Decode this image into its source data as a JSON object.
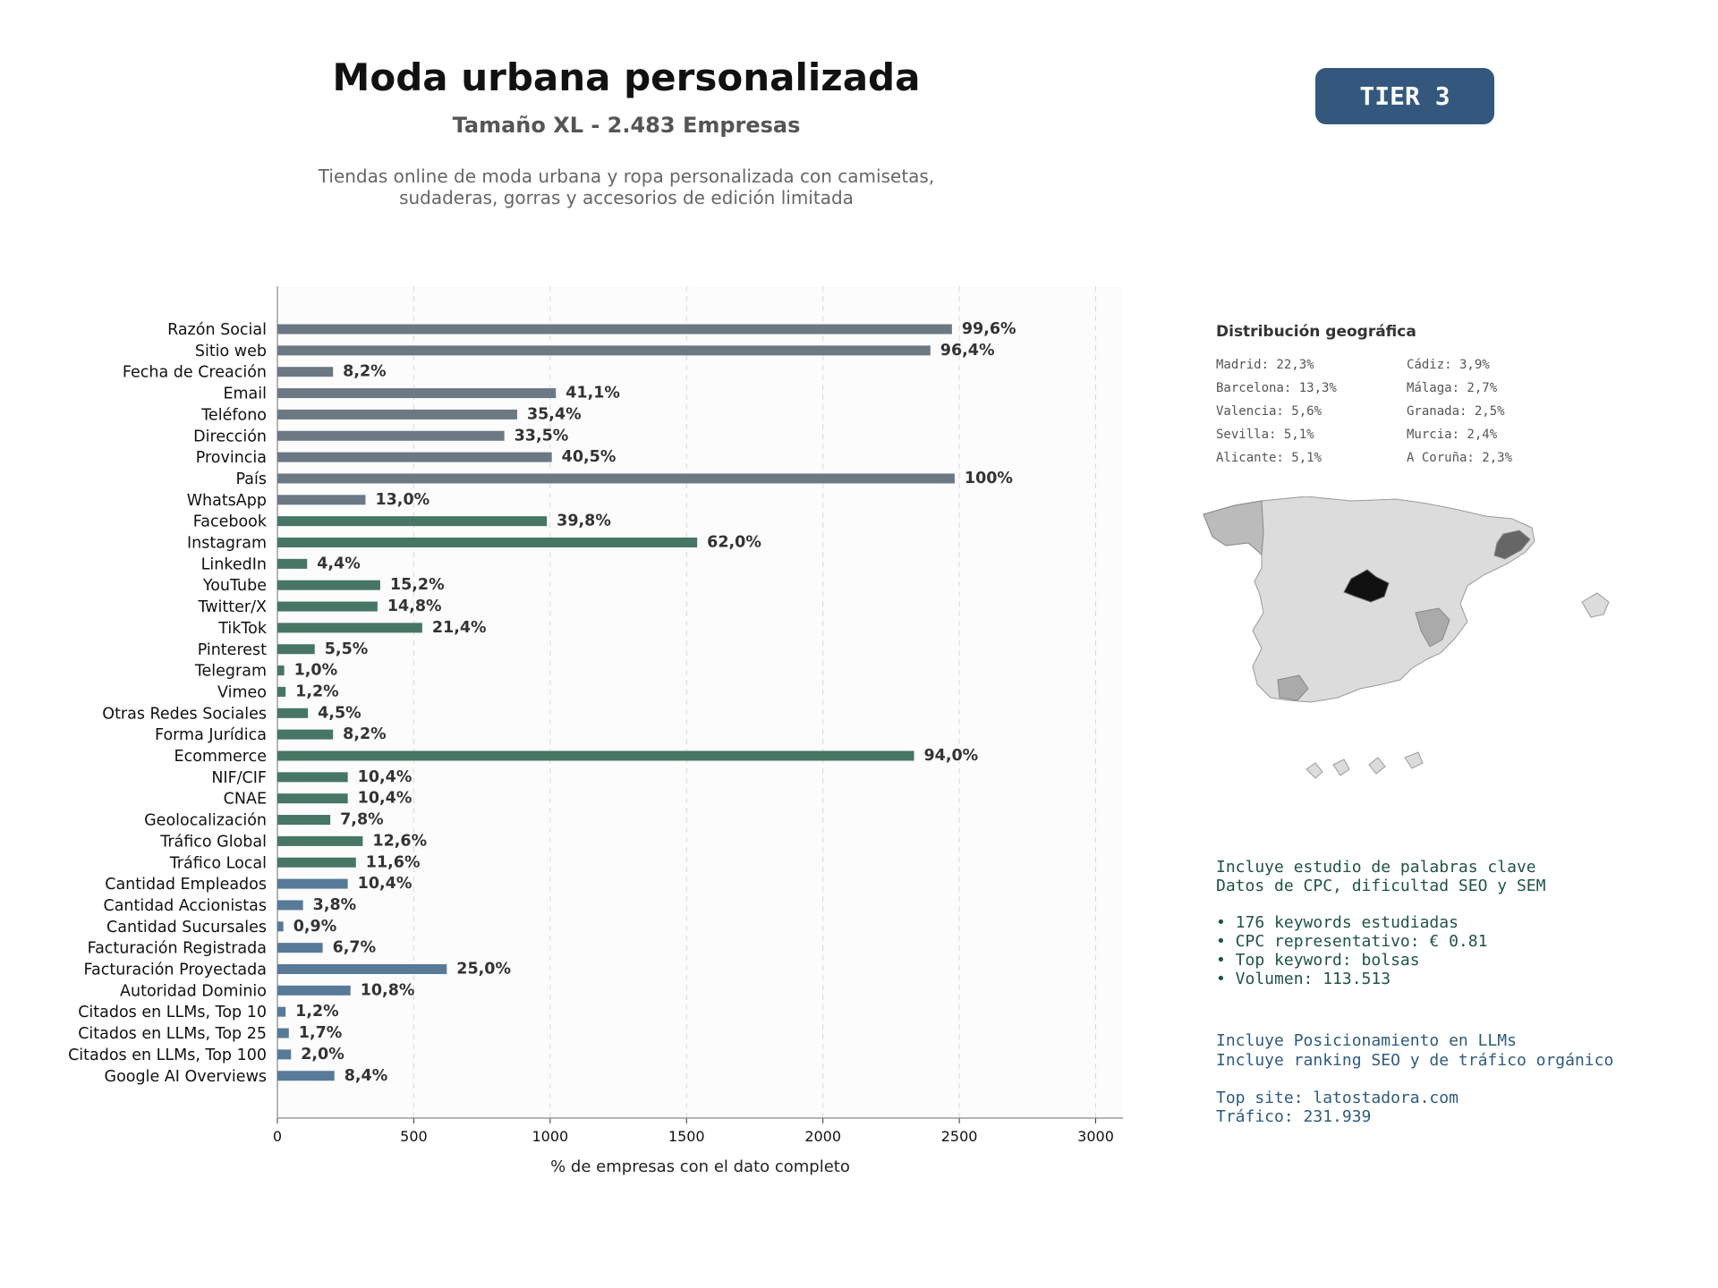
{
  "header": {
    "title": "Moda urbana personalizada",
    "subtitle": "Tamaño XL - 2.483 Empresas",
    "description_line1": "Tiendas online de moda urbana y ropa personalizada con camisetas,",
    "description_line2": "sudaderas, gorras y accesorios de edición limitada",
    "tier": "TIER 3"
  },
  "colors": {
    "gray": "#6c7883",
    "green": "#477665",
    "blue": "#587a98",
    "badge": "#34587d"
  },
  "chart_data": {
    "type": "bar",
    "orientation": "horizontal",
    "xlabel": "% de empresas con el dato completo",
    "xlim": [
      0,
      3100
    ],
    "xticks": [
      0,
      500,
      1000,
      1500,
      2000,
      2500,
      3000
    ],
    "grid": "vertical dashed",
    "categories": [
      "Razón Social",
      "Sitio web",
      "Fecha de Creación",
      "Email",
      "Teléfono",
      "Dirección",
      "Provincia",
      "País",
      "WhatsApp",
      "Facebook",
      "Instagram",
      "LinkedIn",
      "YouTube",
      "Twitter/X",
      "TikTok",
      "Pinterest",
      "Telegram",
      "Vimeo",
      "Otras Redes Sociales",
      "Forma Jurídica",
      "Ecommerce",
      "NIF/CIF",
      "CNAE",
      "Geolocalización",
      "Tráfico Global",
      "Tráfico Local",
      "Cantidad Empleados",
      "Cantidad Accionistas",
      "Cantidad Sucursales",
      "Facturación Registrada",
      "Facturación Proyectada",
      "Autoridad Dominio",
      "Citados en LLMs, Top 10",
      "Citados en LLMs, Top 25",
      "Citados en LLMs, Top 100",
      "Google AI Overviews"
    ],
    "values": [
      2473,
      2394,
      204,
      1021,
      879,
      832,
      1006,
      2483,
      323,
      988,
      1539,
      109,
      377,
      367,
      531,
      137,
      25,
      30,
      112,
      204,
      2334,
      258,
      258,
      194,
      313,
      288,
      258,
      94,
      22,
      166,
      621,
      268,
      30,
      42,
      50,
      209
    ],
    "labels": [
      "99,6%",
      "96,4%",
      "8,2%",
      "41,1%",
      "35,4%",
      "33,5%",
      "40,5%",
      "100%",
      "13,0%",
      "39,8%",
      "62,0%",
      "4,4%",
      "15,2%",
      "14,8%",
      "21,4%",
      "5,5%",
      "1,0%",
      "1,2%",
      "4,5%",
      "8,2%",
      "94,0%",
      "10,4%",
      "10,4%",
      "7,8%",
      "12,6%",
      "11,6%",
      "10,4%",
      "3,8%",
      "0,9%",
      "6,7%",
      "25,0%",
      "10,8%",
      "1,2%",
      "1,7%",
      "2,0%",
      "8,4%"
    ],
    "groups": [
      "gray",
      "gray",
      "gray",
      "gray",
      "gray",
      "gray",
      "gray",
      "gray",
      "gray",
      "green",
      "green",
      "green",
      "green",
      "green",
      "green",
      "green",
      "green",
      "green",
      "green",
      "green",
      "green",
      "green",
      "green",
      "green",
      "green",
      "green",
      "blue",
      "blue",
      "blue",
      "blue",
      "blue",
      "blue",
      "blue",
      "blue",
      "blue",
      "blue"
    ]
  },
  "geo": {
    "title": "Distribución geográfica",
    "col1": [
      "Madrid: 22,3%",
      "Barcelona: 13,3%",
      "Valencia: 5,6%",
      "Sevilla: 5,1%",
      "Alicante: 5,1%"
    ],
    "col2": [
      "Cádiz: 3,9%",
      "Málaga: 2,7%",
      "Granada: 2,5%",
      "Murcia: 2,4%",
      "A Coruña: 2,3%"
    ]
  },
  "info": {
    "kw_line1": "Incluye estudio de palabras clave",
    "kw_line2": "Datos de CPC, dificultad SEO y SEM",
    "kw_bullet1": "• 176 keywords estudiadas",
    "kw_bullet2": "• CPC representativo: € 0.81",
    "kw_bullet3": "• Top keyword: bolsas",
    "kw_bullet4": "• Volumen: 113.513",
    "llm_line1": "Incluye Posicionamiento en LLMs",
    "llm_line2": "Incluye ranking SEO y de tráfico orgánico",
    "top_site": "Top site: latostadora.com",
    "traffic": "Tráfico: 231.939"
  }
}
